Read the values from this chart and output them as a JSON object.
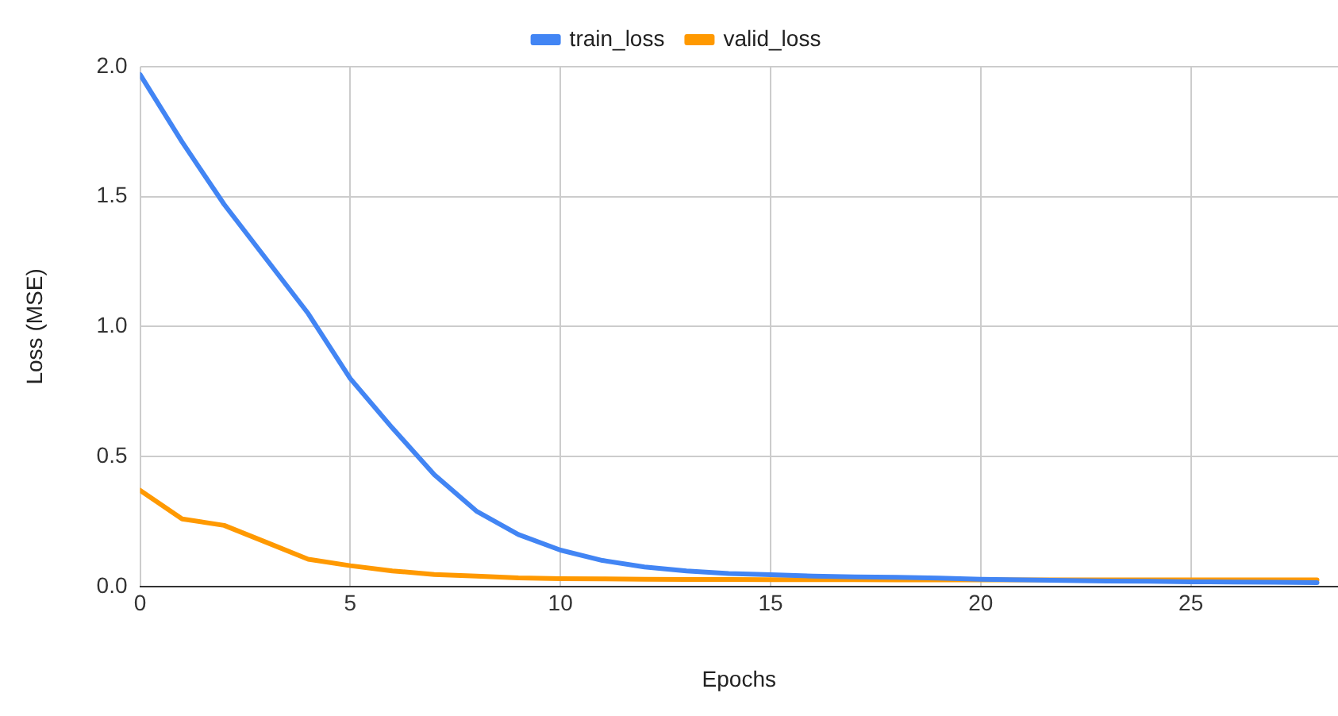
{
  "chart_data": {
    "type": "line",
    "xlabel": "Epochs",
    "ylabel": "Loss (MSE)",
    "x": [
      0,
      1,
      2,
      3,
      4,
      5,
      6,
      7,
      8,
      9,
      10,
      11,
      12,
      13,
      14,
      15,
      16,
      17,
      18,
      19,
      20,
      21,
      22,
      23,
      24,
      25,
      26,
      27,
      28
    ],
    "series": [
      {
        "name": "train_loss",
        "color": "#4285f4",
        "values": [
          1.97,
          1.71,
          1.47,
          1.26,
          1.05,
          0.8,
          0.61,
          0.43,
          0.29,
          0.2,
          0.14,
          0.1,
          0.075,
          0.06,
          0.05,
          0.045,
          0.04,
          0.037,
          0.035,
          0.032,
          0.028,
          0.025,
          0.023,
          0.021,
          0.02,
          0.018,
          0.017,
          0.016,
          0.015
        ]
      },
      {
        "name": "valid_loss",
        "color": "#ff9900",
        "values": [
          0.37,
          0.26,
          0.235,
          0.17,
          0.105,
          0.08,
          0.06,
          0.046,
          0.04,
          0.033,
          0.03,
          0.029,
          0.028,
          0.027,
          0.027,
          0.026,
          0.026,
          0.026,
          0.025,
          0.025,
          0.025,
          0.025,
          0.025,
          0.025,
          0.025,
          0.025,
          0.025,
          0.025,
          0.025
        ]
      }
    ],
    "xlim": [
      0,
      28.5
    ],
    "xticks": [
      0,
      5,
      10,
      15,
      20,
      25
    ],
    "ylim": [
      0,
      2
    ],
    "yticks": [
      {
        "value": 0,
        "label": "0.0"
      },
      0.5,
      {
        "value": 1,
        "label": "1.0"
      },
      1.5,
      {
        "value": 2,
        "label": "2.0"
      }
    ],
    "grid": true,
    "legend": "top",
    "marker": "none",
    "line_style": "solid"
  }
}
